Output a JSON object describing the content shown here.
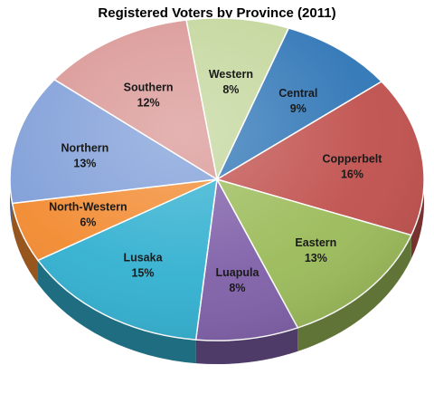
{
  "chart_data": {
    "type": "pie",
    "title": "Registered Voters by Province (2011)",
    "unit": "%",
    "slices": [
      {
        "name": "Western",
        "value": 8,
        "label": "8%",
        "color": "#c3d69b"
      },
      {
        "name": "Central",
        "value": 9,
        "label": "9%",
        "color": "#2e75b6"
      },
      {
        "name": "Copperbelt",
        "value": 16,
        "label": "16%",
        "color": "#c0504d"
      },
      {
        "name": "Eastern",
        "value": 13,
        "label": "13%",
        "color": "#9bbb59"
      },
      {
        "name": "Luapula",
        "value": 8,
        "label": "8%",
        "color": "#7f5fa8"
      },
      {
        "name": "Lusaka",
        "value": 15,
        "label": "15%",
        "color": "#31b0d0"
      },
      {
        "name": "North-Western",
        "value": 6,
        "label": "6%",
        "color": "#f28a30"
      },
      {
        "name": "Northern",
        "value": 13,
        "label": "13%",
        "color": "#7f9ed8"
      },
      {
        "name": "Southern",
        "value": 12,
        "label": "12%",
        "color": "#d99694"
      }
    ],
    "style": "3d-tilted"
  }
}
